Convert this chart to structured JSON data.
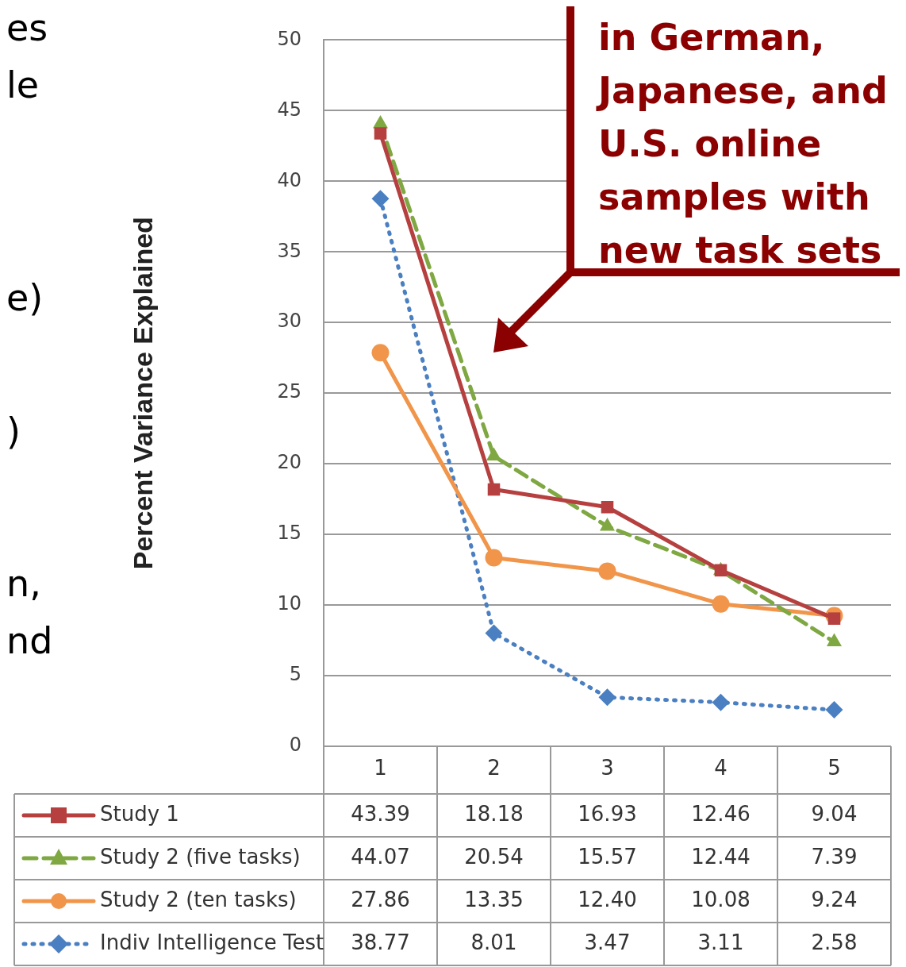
{
  "chart_data": {
    "type": "line",
    "ylabel": "Percent Variance Explained",
    "categories": [
      "1",
      "2",
      "3",
      "4",
      "5"
    ],
    "ylim": [
      0,
      50
    ],
    "yticks": [
      0,
      5,
      10,
      15,
      20,
      25,
      30,
      35,
      40,
      45,
      50
    ],
    "grid": "y",
    "legend": "bottom",
    "series": [
      {
        "name": "Study 1",
        "color": "#b5403f",
        "marker": "square",
        "line_style": "solid",
        "values": [
          43.39,
          18.18,
          16.93,
          12.46,
          9.04
        ],
        "value_labels": [
          "43.39",
          "18.18",
          "16.93",
          "12.46",
          "9.04"
        ]
      },
      {
        "name": "Study 2 (five tasks)",
        "color": "#7fa843",
        "marker": "triangle",
        "line_style": "dashed",
        "values": [
          44.07,
          20.54,
          15.57,
          12.44,
          7.39
        ],
        "value_labels": [
          "44.07",
          "20.54",
          "15.57",
          "12.44",
          "7.39"
        ]
      },
      {
        "name": "Study 2 (ten tasks)",
        "color": "#f0954a",
        "marker": "circle",
        "line_style": "solid",
        "values": [
          27.86,
          13.35,
          12.4,
          10.08,
          9.24
        ],
        "value_labels": [
          "27.86",
          "13.35",
          "12.40",
          "10.08",
          "9.24"
        ]
      },
      {
        "name": "Indiv Intelligence Test",
        "color": "#4a7fc1",
        "marker": "diamond",
        "line_style": "dotted",
        "values": [
          38.77,
          8.01,
          3.47,
          3.11,
          2.58
        ],
        "value_labels": [
          "38.77",
          "8.01",
          "3.47",
          "3.11",
          "2.58"
        ]
      }
    ],
    "annotations": [
      "in German, Japanese, and U.S. online samples with new task sets",
      "es",
      "le",
      "e)",
      ")",
      "n,",
      "nd"
    ]
  }
}
